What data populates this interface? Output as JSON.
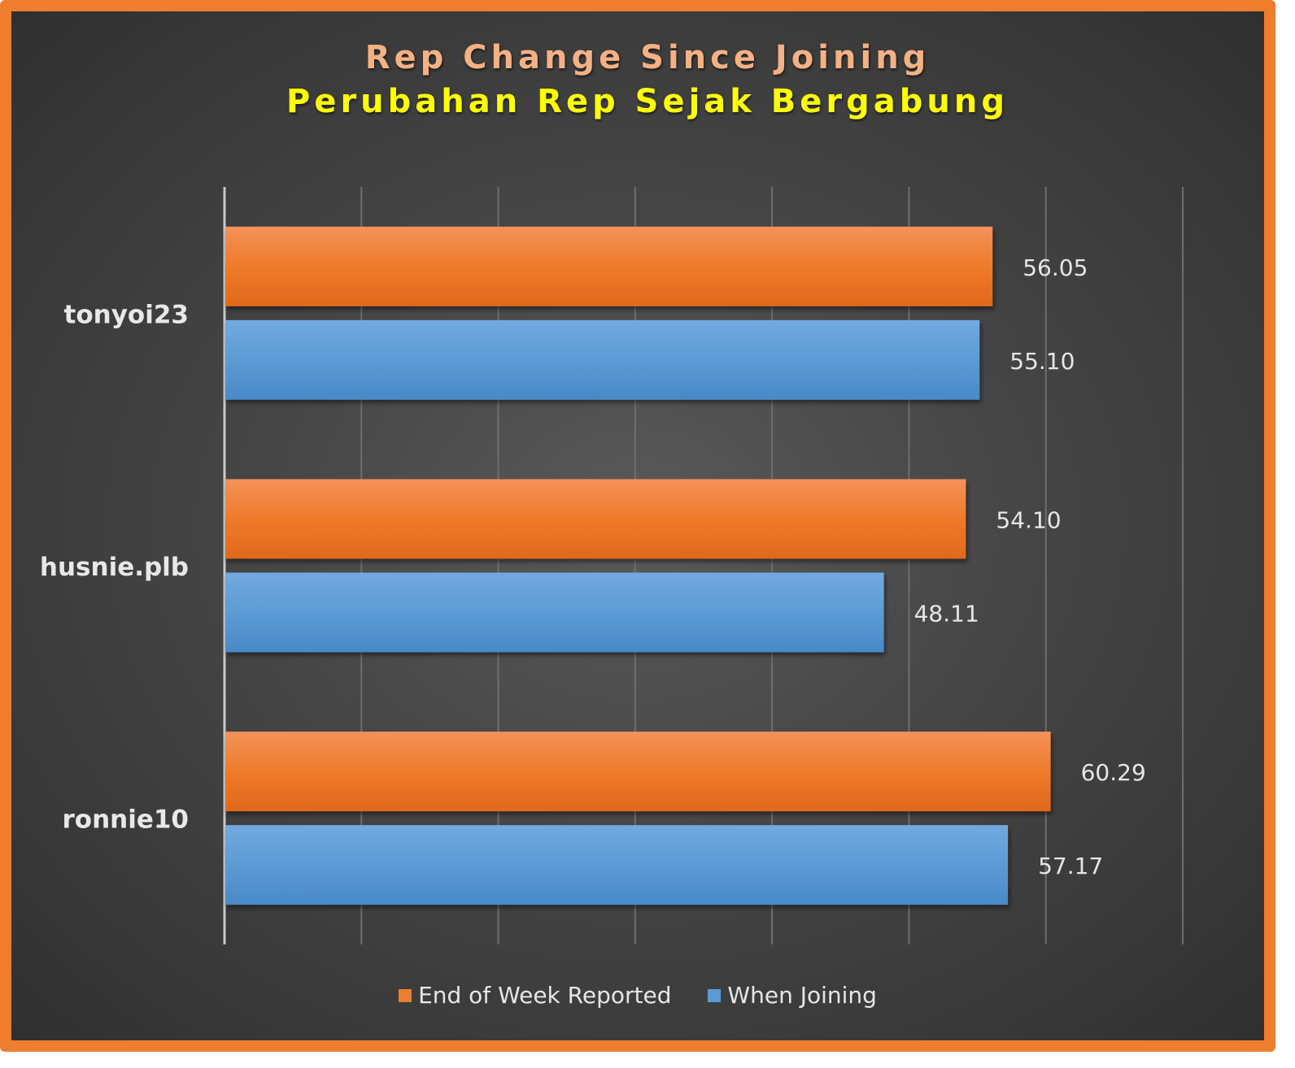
{
  "chart_data": {
    "type": "bar",
    "orientation": "horizontal",
    "title": "Rep Change Since Joining",
    "subtitle": "Perubahan Rep Sejak Bergabung",
    "categories": [
      "tonyoi23",
      "husnie.plb",
      "ronnie10"
    ],
    "series": [
      {
        "name": "End of Week Reported",
        "color": "#ed7d31",
        "values": [
          56.05,
          54.1,
          60.29
        ]
      },
      {
        "name": "When Joining",
        "color": "#5b9bd5",
        "values": [
          55.1,
          48.11,
          57.17
        ]
      }
    ],
    "value_labels": [
      [
        "56.05",
        "54.10",
        "60.29"
      ],
      [
        "55.10",
        "48.11",
        "57.17"
      ]
    ],
    "xlim": [
      0,
      70
    ],
    "grid": true,
    "legend_position": "bottom"
  }
}
